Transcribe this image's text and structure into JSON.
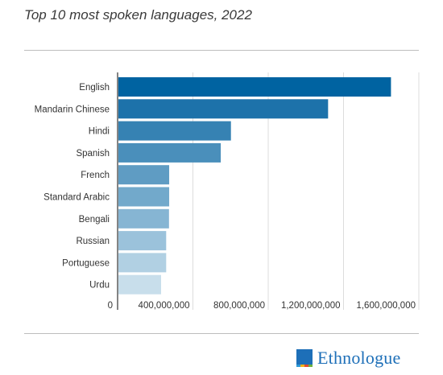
{
  "title": "Top 10 most spoken languages, 2022",
  "logo": {
    "text": "Ethnologue",
    "icon": "ethnologue-logo-icon"
  },
  "chart_data": {
    "type": "bar",
    "orientation": "horizontal",
    "categories": [
      "English",
      "Mandarin Chinese",
      "Hindi",
      "Spanish",
      "French",
      "Standard Arabic",
      "Bengali",
      "Russian",
      "Portuguese",
      "Urdu"
    ],
    "values": [
      1452000000,
      1118000000,
      602000000,
      548000000,
      274000000,
      274000000,
      273000000,
      258000000,
      258000000,
      231000000
    ],
    "xlim": [
      0,
      1600000000
    ],
    "xticks": [
      0,
      400000000,
      800000000,
      1200000000,
      1600000000
    ],
    "xtick_labels": [
      "0",
      "400,000,000",
      "800,000,000",
      "1,200,000,000",
      "1,600,000,000"
    ],
    "colors": [
      "#0063a1",
      "#1d72aa",
      "#3682b3",
      "#4a8fbb",
      "#5f9cc3",
      "#72a9cb",
      "#86b5d3",
      "#9bc2db",
      "#b1d0e3",
      "#c8deeb"
    ],
    "grid": true
  }
}
